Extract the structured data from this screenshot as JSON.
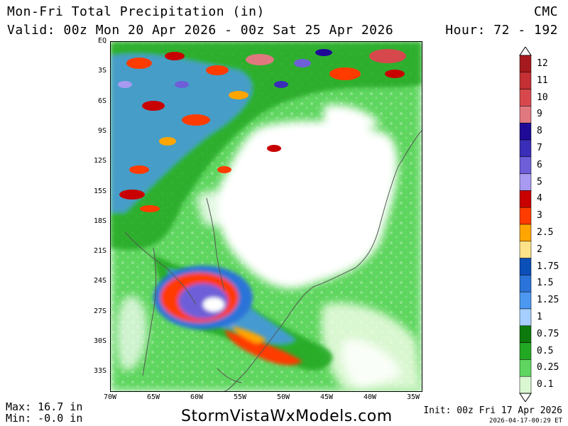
{
  "header": {
    "title": "Mon-Fri Total Precipitation (in)",
    "valid": "Valid: 00z Mon 20 Apr 2026 - 00z Sat 25 Apr 2026",
    "model": "CMC",
    "hour": "Hour: 72 - 192"
  },
  "map": {
    "lat_labels": [
      "EQ",
      "3S",
      "6S",
      "9S",
      "12S",
      "15S",
      "18S",
      "21S",
      "24S",
      "27S",
      "30S",
      "33S"
    ],
    "lon_labels": [
      "70W",
      "65W",
      "60W",
      "55W",
      "50W",
      "45W",
      "40W",
      "35W"
    ],
    "extent": {
      "lon": [
        -70,
        -34.5
      ],
      "lat": [
        -35.5,
        0
      ]
    },
    "background": "#ffffff",
    "coast_color": "#555555"
  },
  "legend": {
    "levels": [
      {
        "label": "12",
        "color": "#a51a1e"
      },
      {
        "label": "11",
        "color": "#c43034"
      },
      {
        "label": "10",
        "color": "#d7484d"
      },
      {
        "label": "9",
        "color": "#e0787f"
      },
      {
        "label": "8",
        "color": "#1e0a96"
      },
      {
        "label": "7",
        "color": "#3a2db8"
      },
      {
        "label": "6",
        "color": "#6e5ed8"
      },
      {
        "label": "5",
        "color": "#a89af0"
      },
      {
        "label": "4",
        "color": "#c80000"
      },
      {
        "label": "3",
        "color": "#ff3b00"
      },
      {
        "label": "2.5",
        "color": "#ffa500"
      },
      {
        "label": "2",
        "color": "#ffe38a"
      },
      {
        "label": "1.75",
        "color": "#0b4fb8"
      },
      {
        "label": "1.5",
        "color": "#2a73d8"
      },
      {
        "label": "1.25",
        "color": "#4c98f0"
      },
      {
        "label": "1",
        "color": "#a6cfff"
      },
      {
        "label": "0.75",
        "color": "#0c7a0c"
      },
      {
        "label": "0.5",
        "color": "#23a823"
      },
      {
        "label": "0.25",
        "color": "#5fd65f"
      },
      {
        "label": "0.1",
        "color": "#d9f7d0"
      }
    ]
  },
  "footer": {
    "max": "Max: 16.7 in",
    "min": "Min: -0.0 in",
    "site": "StormVistaWxModels.com",
    "init": "Init: 00z Fri 17 Apr 2026",
    "stamp": "2026-04-17-00:29 ET"
  }
}
